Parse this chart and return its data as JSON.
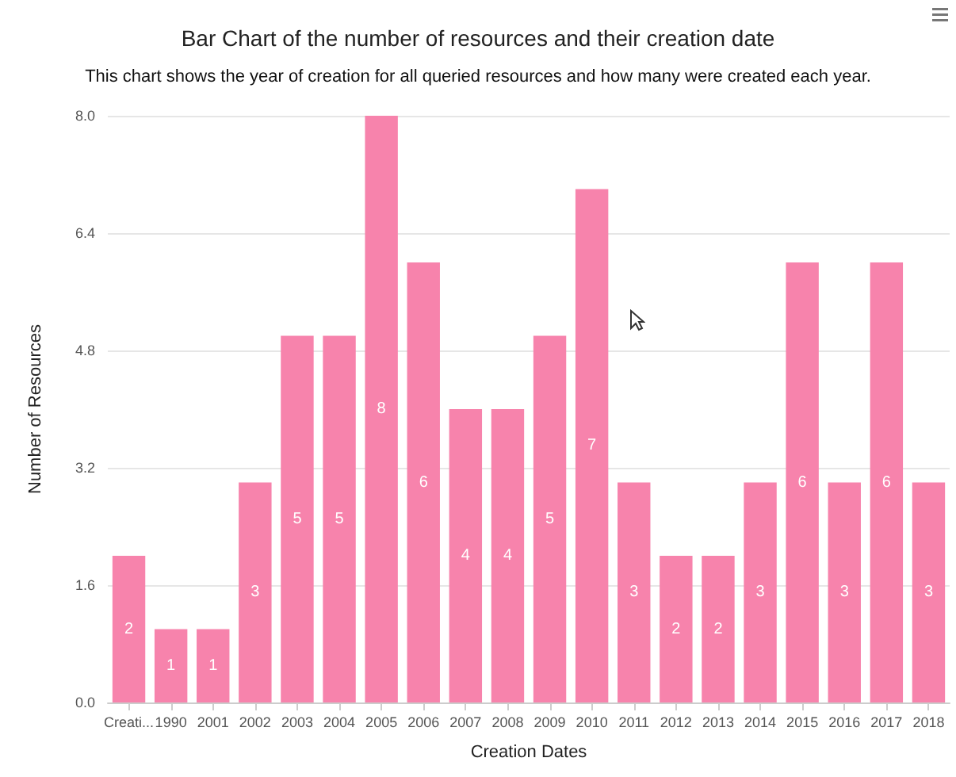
{
  "chart_data": {
    "type": "bar",
    "title": "Bar Chart of the number of resources and their creation date",
    "subtitle": "This chart shows the year of creation for all queried resources and how many were created each year.",
    "xlabel": "Creation Dates",
    "ylabel": "Number of Resources",
    "categories": [
      "Creati...",
      "1990",
      "2001",
      "2002",
      "2003",
      "2004",
      "2005",
      "2006",
      "2007",
      "2008",
      "2009",
      "2010",
      "2011",
      "2012",
      "2013",
      "2014",
      "2015",
      "2016",
      "2017",
      "2018"
    ],
    "values": [
      2,
      1,
      1,
      3,
      5,
      5,
      8,
      6,
      4,
      4,
      5,
      7,
      3,
      2,
      2,
      3,
      6,
      3,
      6,
      3
    ],
    "color": "#f783ac",
    "ylim": [
      0,
      8
    ],
    "yticks": [
      {
        "value": 0,
        "label": "0.0"
      },
      {
        "value": 1.6,
        "label": "1.6"
      },
      {
        "value": 3.2,
        "label": "3.2"
      },
      {
        "value": 4.8,
        "label": "4.8"
      },
      {
        "value": 6.4,
        "label": "6.4"
      },
      {
        "value": 8,
        "label": "8.0"
      }
    ],
    "grid": "y",
    "data_labels": true
  }
}
